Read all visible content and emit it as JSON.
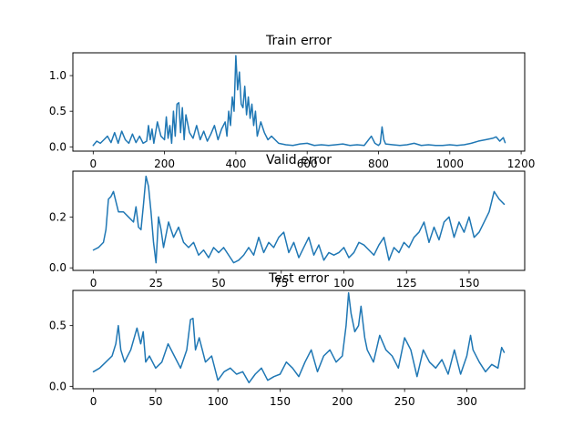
{
  "colors": {
    "series": "#1f77b4",
    "axis": "#000000",
    "background": "#ffffff"
  },
  "chart_data": [
    {
      "type": "line",
      "title": "Train error",
      "xlabel": "",
      "ylabel": "",
      "xlim": [
        -57,
        1210
      ],
      "ylim": [
        -0.06,
        1.32
      ],
      "xticks": [
        0,
        200,
        400,
        600,
        800,
        1000,
        1200
      ],
      "xtick_labels": [
        "0",
        "200",
        "400",
        "600",
        "800",
        "1000",
        "1200"
      ],
      "yticks": [
        0.0,
        0.5,
        1.0
      ],
      "ytick_labels": [
        "0.0",
        "0.5",
        "1.0"
      ],
      "grid": false,
      "series": [
        {
          "x": [
            0,
            10,
            20,
            30,
            40,
            50,
            60,
            70,
            80,
            90,
            100,
            110,
            120,
            130,
            140,
            150,
            155,
            160,
            165,
            170,
            180,
            190,
            200,
            205,
            210,
            215,
            220,
            225,
            230,
            235,
            240,
            245,
            250,
            255,
            260,
            270,
            280,
            290,
            300,
            310,
            320,
            330,
            340,
            350,
            360,
            370,
            375,
            380,
            385,
            390,
            395,
            400,
            405,
            410,
            415,
            420,
            425,
            430,
            435,
            440,
            445,
            450,
            455,
            460,
            470,
            480,
            490,
            500,
            520,
            540,
            560,
            580,
            600,
            620,
            640,
            660,
            680,
            700,
            720,
            740,
            760,
            780,
            790,
            800,
            805,
            810,
            815,
            820,
            840,
            860,
            880,
            900,
            920,
            940,
            960,
            980,
            1000,
            1020,
            1040,
            1060,
            1080,
            1100,
            1120,
            1130,
            1140,
            1150,
            1155
          ],
          "y": [
            0.02,
            0.08,
            0.05,
            0.1,
            0.15,
            0.06,
            0.2,
            0.05,
            0.22,
            0.1,
            0.05,
            0.18,
            0.06,
            0.15,
            0.05,
            0.08,
            0.3,
            0.1,
            0.25,
            0.05,
            0.35,
            0.15,
            0.1,
            0.42,
            0.12,
            0.3,
            0.05,
            0.5,
            0.15,
            0.6,
            0.62,
            0.2,
            0.55,
            0.1,
            0.45,
            0.2,
            0.12,
            0.3,
            0.1,
            0.22,
            0.08,
            0.18,
            0.3,
            0.1,
            0.25,
            0.35,
            0.15,
            0.5,
            0.3,
            0.7,
            0.5,
            1.28,
            0.8,
            1.05,
            0.6,
            0.55,
            0.85,
            0.45,
            0.7,
            0.4,
            0.6,
            0.3,
            0.5,
            0.15,
            0.35,
            0.2,
            0.1,
            0.15,
            0.05,
            0.03,
            0.02,
            0.04,
            0.05,
            0.02,
            0.03,
            0.02,
            0.03,
            0.04,
            0.02,
            0.03,
            0.02,
            0.15,
            0.05,
            0.02,
            0.05,
            0.28,
            0.1,
            0.04,
            0.03,
            0.02,
            0.03,
            0.05,
            0.02,
            0.03,
            0.02,
            0.02,
            0.03,
            0.02,
            0.03,
            0.05,
            0.08,
            0.1,
            0.12,
            0.14,
            0.08,
            0.13,
            0.06
          ]
        }
      ]
    },
    {
      "type": "line",
      "title": "Valid error",
      "xlabel": "",
      "ylabel": "",
      "xlim": [
        -8.2,
        172.2
      ],
      "ylim": [
        -0.01,
        0.38
      ],
      "xticks": [
        0,
        25,
        50,
        75,
        100,
        125,
        150
      ],
      "xtick_labels": [
        "0",
        "25",
        "50",
        "75",
        "100",
        "125",
        "150"
      ],
      "yticks": [
        0.0,
        0.2
      ],
      "ytick_labels": [
        "0.0",
        "0.2"
      ],
      "grid": false,
      "series": [
        {
          "x": [
            0,
            2,
            4,
            5,
            6,
            7,
            8,
            10,
            12,
            14,
            16,
            17,
            18,
            19,
            20,
            21,
            22,
            23,
            24,
            25,
            26,
            27,
            28,
            30,
            32,
            34,
            36,
            38,
            40,
            42,
            44,
            46,
            48,
            50,
            52,
            54,
            56,
            58,
            60,
            62,
            64,
            66,
            68,
            70,
            72,
            74,
            76,
            78,
            80,
            82,
            84,
            86,
            88,
            90,
            92,
            94,
            96,
            98,
            100,
            102,
            104,
            106,
            108,
            110,
            112,
            114,
            116,
            118,
            120,
            122,
            124,
            126,
            128,
            130,
            132,
            134,
            136,
            138,
            140,
            142,
            144,
            146,
            148,
            150,
            152,
            154,
            156,
            158,
            160,
            162,
            164
          ],
          "y": [
            0.07,
            0.08,
            0.1,
            0.15,
            0.27,
            0.28,
            0.3,
            0.22,
            0.22,
            0.2,
            0.18,
            0.24,
            0.16,
            0.15,
            0.25,
            0.36,
            0.32,
            0.22,
            0.1,
            0.02,
            0.2,
            0.15,
            0.08,
            0.18,
            0.12,
            0.16,
            0.1,
            0.08,
            0.1,
            0.05,
            0.07,
            0.04,
            0.08,
            0.06,
            0.08,
            0.05,
            0.02,
            0.03,
            0.05,
            0.08,
            0.05,
            0.12,
            0.06,
            0.1,
            0.08,
            0.12,
            0.14,
            0.06,
            0.1,
            0.04,
            0.08,
            0.12,
            0.05,
            0.09,
            0.03,
            0.06,
            0.05,
            0.06,
            0.08,
            0.04,
            0.06,
            0.1,
            0.09,
            0.07,
            0.05,
            0.09,
            0.12,
            0.03,
            0.08,
            0.06,
            0.1,
            0.08,
            0.12,
            0.14,
            0.18,
            0.1,
            0.16,
            0.11,
            0.18,
            0.2,
            0.12,
            0.18,
            0.14,
            0.2,
            0.12,
            0.14,
            0.18,
            0.22,
            0.3,
            0.27,
            0.25
          ]
        }
      ]
    },
    {
      "type": "line",
      "title": "Test error",
      "xlabel": "",
      "ylabel": "",
      "xlim": [
        -16.5,
        346.5
      ],
      "ylim": [
        -0.02,
        0.79
      ],
      "xticks": [
        0,
        50,
        100,
        150,
        200,
        250,
        300
      ],
      "xtick_labels": [
        "0",
        "50",
        "100",
        "150",
        "200",
        "250",
        "300"
      ],
      "yticks": [
        0.0,
        0.5
      ],
      "ytick_labels": [
        "0.0",
        "0.5"
      ],
      "grid": false,
      "series": [
        {
          "x": [
            0,
            5,
            10,
            15,
            18,
            20,
            22,
            25,
            30,
            35,
            38,
            40,
            42,
            45,
            50,
            55,
            60,
            65,
            70,
            75,
            78,
            80,
            82,
            85,
            90,
            95,
            100,
            105,
            110,
            115,
            120,
            125,
            130,
            135,
            140,
            145,
            150,
            155,
            160,
            165,
            170,
            175,
            180,
            185,
            190,
            195,
            200,
            203,
            205,
            207,
            210,
            213,
            215,
            218,
            220,
            225,
            230,
            235,
            240,
            245,
            250,
            255,
            260,
            265,
            270,
            275,
            280,
            285,
            290,
            295,
            300,
            303,
            305,
            310,
            315,
            320,
            325,
            328,
            330
          ],
          "y": [
            0.12,
            0.15,
            0.2,
            0.25,
            0.35,
            0.5,
            0.3,
            0.2,
            0.3,
            0.48,
            0.35,
            0.45,
            0.2,
            0.25,
            0.15,
            0.2,
            0.35,
            0.25,
            0.15,
            0.3,
            0.55,
            0.56,
            0.3,
            0.4,
            0.2,
            0.25,
            0.05,
            0.12,
            0.15,
            0.1,
            0.12,
            0.03,
            0.1,
            0.15,
            0.05,
            0.08,
            0.1,
            0.2,
            0.15,
            0.08,
            0.2,
            0.3,
            0.12,
            0.25,
            0.3,
            0.2,
            0.25,
            0.5,
            0.77,
            0.6,
            0.45,
            0.5,
            0.66,
            0.4,
            0.3,
            0.2,
            0.42,
            0.3,
            0.25,
            0.15,
            0.4,
            0.3,
            0.08,
            0.3,
            0.2,
            0.15,
            0.22,
            0.1,
            0.3,
            0.1,
            0.25,
            0.42,
            0.3,
            0.2,
            0.12,
            0.18,
            0.15,
            0.32,
            0.28
          ]
        }
      ]
    }
  ]
}
